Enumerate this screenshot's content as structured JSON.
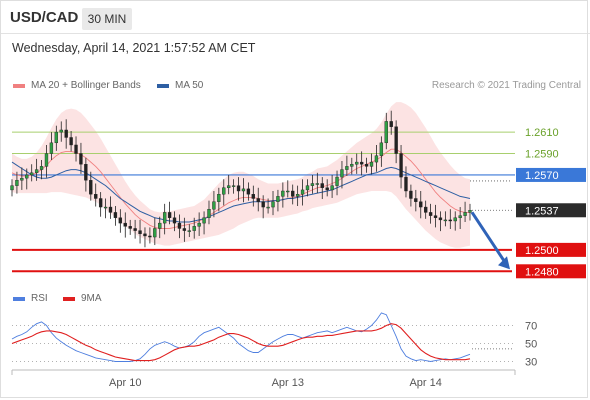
{
  "header": {
    "symbol": "USD/CAD",
    "timeframe": "30 MIN",
    "datetime": "Wednesday, April 14, 2021 1:57:52 AM CET"
  },
  "legend": {
    "ma20": {
      "label": "MA 20 + Bollinger Bands",
      "color": "#f08080"
    },
    "ma50": {
      "label": "MA 50",
      "color": "#2e5fa3"
    },
    "rsi": {
      "label": "RSI",
      "color": "#4f7fdf"
    },
    "rsi_ma": {
      "label": "9MA",
      "color": "#e02020"
    }
  },
  "credit": "Research © 2021 Trading Central",
  "chart_data": [
    {
      "type": "line",
      "title": "",
      "x_ticks": [
        "Apr 10",
        "Apr 13",
        "Apr 14"
      ],
      "ylim": [
        1.247,
        1.264
      ],
      "levels": [
        {
          "value": 1.261,
          "label": "1.2610",
          "style": "resistance-green"
        },
        {
          "value": 1.259,
          "label": "1.2590",
          "style": "resistance-green"
        },
        {
          "value": 1.257,
          "label": "1.2570",
          "style": "pivot-blue"
        },
        {
          "value": 1.2537,
          "label": "1.2537",
          "style": "last-price"
        },
        {
          "value": 1.25,
          "label": "1.2500",
          "style": "support-red"
        },
        {
          "value": 1.248,
          "label": "1.2480",
          "style": "support-red"
        }
      ],
      "close": [
        1.256,
        1.2565,
        1.2567,
        1.257,
        1.2572,
        1.2575,
        1.2578,
        1.259,
        1.26,
        1.261,
        1.2612,
        1.2605,
        1.2598,
        1.259,
        1.258,
        1.2565,
        1.2552,
        1.2548,
        1.254,
        1.254,
        1.2535,
        1.253,
        1.2525,
        1.2522,
        1.252,
        1.2518,
        1.2515,
        1.2513,
        1.2512,
        1.252,
        1.2525,
        1.2535,
        1.253,
        1.2525,
        1.252,
        1.2518,
        1.2518,
        1.2522,
        1.2525,
        1.253,
        1.2538,
        1.2545,
        1.2552,
        1.2558,
        1.256,
        1.256,
        1.2555,
        1.2557,
        1.2552,
        1.2548,
        1.2545,
        1.254,
        1.254,
        1.2545,
        1.255,
        1.2555,
        1.2555,
        1.255,
        1.2552,
        1.2556,
        1.256,
        1.2562,
        1.2562,
        1.2558,
        1.2556,
        1.256,
        1.2568,
        1.2575,
        1.2578,
        1.258,
        1.2582,
        1.258,
        1.2578,
        1.2582,
        1.2588,
        1.26,
        1.262,
        1.2615,
        1.259,
        1.2568,
        1.2555,
        1.2548,
        1.2545,
        1.254,
        1.2535,
        1.2532,
        1.253,
        1.2528,
        1.2528,
        1.2527,
        1.253,
        1.2532,
        1.2535,
        1.2537
      ],
      "ma50": [
        1.2582,
        1.2579,
        1.2576,
        1.2573,
        1.257,
        1.2568,
        1.2567,
        1.2567,
        1.2568,
        1.257,
        1.2572,
        1.2574,
        1.2575,
        1.2575,
        1.2574,
        1.2572,
        1.2569,
        1.2566,
        1.2563,
        1.256,
        1.2556,
        1.2552,
        1.2548,
        1.2545,
        1.2542,
        1.2539,
        1.2536,
        1.2534,
        1.2532,
        1.253,
        1.2529,
        1.2528,
        1.2527,
        1.2527,
        1.2526,
        1.2526,
        1.2526,
        1.2527,
        1.2528,
        1.2529,
        1.2531,
        1.2533,
        1.2535,
        1.2537,
        1.2539,
        1.2541,
        1.2542,
        1.2543,
        1.2544,
        1.2545,
        1.2545,
        1.2545,
        1.2545,
        1.2546,
        1.2546,
        1.2547,
        1.2548,
        1.2548,
        1.2549,
        1.255,
        1.2551,
        1.2552,
        1.2553,
        1.2554,
        1.2555,
        1.2556,
        1.2558,
        1.256,
        1.2562,
        1.2564,
        1.2566,
        1.2568,
        1.257,
        1.2571,
        1.2572,
        1.2574,
        1.2576,
        1.2577,
        1.2576,
        1.2574,
        1.2572,
        1.257,
        1.2568,
        1.2566,
        1.2564,
        1.2562,
        1.256,
        1.2558,
        1.2556,
        1.2554,
        1.2552,
        1.255,
        1.2549,
        1.2548
      ],
      "ma20": [
        1.2572,
        1.257,
        1.2569,
        1.2569,
        1.257,
        1.2572,
        1.2575,
        1.2579,
        1.2584,
        1.2588,
        1.2591,
        1.2592,
        1.2592,
        1.2591,
        1.2589,
        1.2586,
        1.2582,
        1.2578,
        1.2573,
        1.2567,
        1.2561,
        1.2555,
        1.2549,
        1.2543,
        1.2538,
        1.2533,
        1.2529,
        1.2526,
        1.2523,
        1.2521,
        1.252,
        1.252,
        1.252,
        1.2521,
        1.2522,
        1.2523,
        1.2524,
        1.2525,
        1.2527,
        1.2529,
        1.2532,
        1.2535,
        1.2538,
        1.2541,
        1.2544,
        1.2546,
        1.2548,
        1.2549,
        1.2549,
        1.2549,
        1.2548,
        1.2547,
        1.2546,
        1.2546,
        1.2546,
        1.2547,
        1.2548,
        1.2549,
        1.255,
        1.2552,
        1.2554,
        1.2556,
        1.2558,
        1.2559,
        1.256,
        1.2562,
        1.2564,
        1.2567,
        1.257,
        1.2573,
        1.2576,
        1.2578,
        1.258,
        1.2582,
        1.2584,
        1.2587,
        1.2591,
        1.2594,
        1.2594,
        1.2591,
        1.2587,
        1.2583,
        1.2578,
        1.2572,
        1.2566,
        1.256,
        1.2554,
        1.2549,
        1.2545,
        1.2541,
        1.2538,
        1.2536,
        1.2535,
        1.2535
      ],
      "bb_width": [
        0.0018,
        0.0017,
        0.0016,
        0.0016,
        0.0017,
        0.0019,
        0.0022,
        0.0026,
        0.003,
        0.0034,
        0.0037,
        0.0039,
        0.004,
        0.004,
        0.0039,
        0.0037,
        0.0035,
        0.0033,
        0.0031,
        0.0029,
        0.0027,
        0.0025,
        0.0023,
        0.0021,
        0.0019,
        0.0018,
        0.0017,
        0.0016,
        0.0015,
        0.0015,
        0.0015,
        0.0016,
        0.0016,
        0.0016,
        0.0016,
        0.0016,
        0.0016,
        0.0016,
        0.0017,
        0.0018,
        0.002,
        0.0022,
        0.0024,
        0.0025,
        0.0026,
        0.0026,
        0.0025,
        0.0024,
        0.0022,
        0.002,
        0.0018,
        0.0017,
        0.0016,
        0.0016,
        0.0016,
        0.0016,
        0.0016,
        0.0016,
        0.0016,
        0.0016,
        0.0017,
        0.0017,
        0.0018,
        0.0018,
        0.0018,
        0.0019,
        0.002,
        0.0021,
        0.0022,
        0.0023,
        0.0024,
        0.0025,
        0.0026,
        0.0027,
        0.0029,
        0.0032,
        0.0036,
        0.004,
        0.0044,
        0.0047,
        0.0049,
        0.005,
        0.005,
        0.0049,
        0.0048,
        0.0046,
        0.0044,
        0.0042,
        0.004,
        0.0038,
        0.0036,
        0.0034,
        0.0032,
        0.0031
      ],
      "forecast": {
        "from": 1.2537,
        "to": 1.248
      }
    },
    {
      "type": "line",
      "title": "",
      "ylim": [
        25,
        85
      ],
      "y_ticks": [
        70,
        50,
        30
      ],
      "series": [
        {
          "name": "RSI",
          "values": [
            55,
            58,
            60,
            63,
            68,
            72,
            74,
            70,
            62,
            56,
            52,
            48,
            45,
            42,
            40,
            38,
            36,
            34,
            33,
            32,
            31,
            30,
            30,
            30,
            30,
            31,
            33,
            38,
            44,
            48,
            50,
            52,
            50,
            47,
            45,
            46,
            48,
            52,
            58,
            62,
            64,
            66,
            68,
            64,
            60,
            56,
            50,
            46,
            42,
            40,
            40,
            44,
            48,
            52,
            55,
            58,
            60,
            60,
            58,
            56,
            58,
            60,
            62,
            63,
            64,
            62,
            64,
            66,
            68,
            66,
            64,
            63,
            66,
            70,
            76,
            84,
            82,
            70,
            58,
            44,
            36,
            33,
            31,
            32,
            31,
            30,
            31,
            32,
            33,
            32,
            33,
            34,
            36,
            38
          ]
        },
        {
          "name": "9MA",
          "values": [
            50,
            52,
            54,
            56,
            58,
            61,
            63,
            64,
            64,
            63,
            62,
            60,
            57,
            54,
            51,
            48,
            46,
            43,
            41,
            39,
            37,
            35,
            34,
            33,
            32,
            31,
            31,
            31,
            31,
            32,
            34,
            37,
            40,
            43,
            45,
            46,
            47,
            47,
            48,
            50,
            52,
            54,
            57,
            59,
            61,
            61,
            60,
            58,
            56,
            53,
            50,
            48,
            47,
            47,
            47,
            48,
            50,
            52,
            54,
            56,
            57,
            57,
            58,
            58,
            59,
            59,
            60,
            61,
            62,
            63,
            64,
            64,
            64,
            64,
            65,
            67,
            70,
            72,
            71,
            67,
            61,
            55,
            49,
            43,
            39,
            36,
            34,
            33,
            32,
            32,
            32,
            32,
            32,
            33
          ]
        }
      ]
    }
  ]
}
